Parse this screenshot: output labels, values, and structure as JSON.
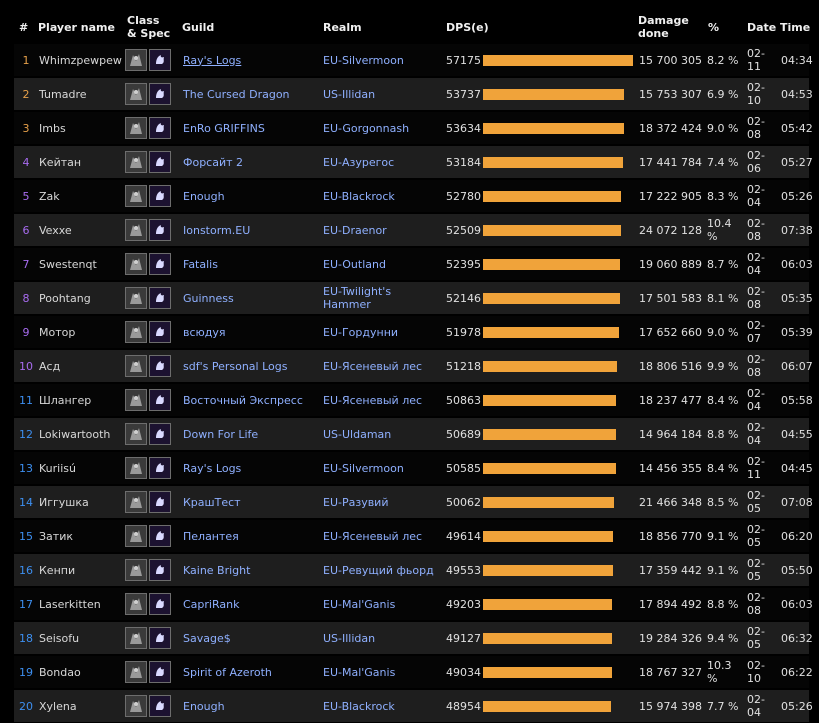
{
  "headers": {
    "rank": "#",
    "player": "Player name",
    "class_spec": "Class & Spec",
    "guild": "Guild",
    "realm": "Realm",
    "dps": "DPS(e)",
    "damage": "Damage done",
    "pct": "%",
    "date": "Date",
    "time": "Time"
  },
  "max_dps": 57175,
  "rows": [
    {
      "rank": "1",
      "name": "Whimzpewpew",
      "guild": "Ray's Logs",
      "guild_link": true,
      "realm": "EU-Silvermoon",
      "dps": "57175",
      "damage": "15 700 305",
      "pct": "8.2 %",
      "date": "02-11",
      "time": "04:34",
      "rank_color": "gold"
    },
    {
      "rank": "2",
      "name": "Tumadre",
      "guild": "The Cursed Dragon",
      "guild_link": false,
      "realm": "US-Illidan",
      "dps": "53737",
      "damage": "15 753 307",
      "pct": "6.9 %",
      "date": "02-10",
      "time": "04:53",
      "rank_color": "gold"
    },
    {
      "rank": "3",
      "name": "Imbs",
      "guild": "EnRo GRIFFINS",
      "guild_link": false,
      "realm": "EU-Gorgonnash",
      "dps": "53634",
      "damage": "18 372 424",
      "pct": "9.0 %",
      "date": "02-08",
      "time": "05:42",
      "rank_color": "gold"
    },
    {
      "rank": "4",
      "name": "Кейтан",
      "guild": "Форсайт 2",
      "guild_link": false,
      "realm": "EU-Азурегос",
      "dps": "53184",
      "damage": "17 441 784",
      "pct": "7.4 %",
      "date": "02-06",
      "time": "05:27",
      "rank_color": "purple"
    },
    {
      "rank": "5",
      "name": "Zak",
      "guild": "Enough",
      "guild_link": false,
      "realm": "EU-Blackrock",
      "dps": "52780",
      "damage": "17 222 905",
      "pct": "8.3 %",
      "date": "02-04",
      "time": "05:26",
      "rank_color": "purple"
    },
    {
      "rank": "6",
      "name": "Vexxe",
      "guild": "Ionstorm.EU",
      "guild_link": false,
      "realm": "EU-Draenor",
      "dps": "52509",
      "damage": "24 072 128",
      "pct": "10.4 %",
      "date": "02-08",
      "time": "07:38",
      "rank_color": "purple"
    },
    {
      "rank": "7",
      "name": "Swestenqt",
      "guild": "Fatalis",
      "guild_link": false,
      "realm": "EU-Outland",
      "dps": "52395",
      "damage": "19 060 889",
      "pct": "8.7 %",
      "date": "02-04",
      "time": "06:03",
      "rank_color": "purple"
    },
    {
      "rank": "8",
      "name": "Poohtang",
      "guild": "Guinness",
      "guild_link": false,
      "realm": "EU-Twilight's Hammer",
      "dps": "52146",
      "damage": "17 501 583",
      "pct": "8.1 %",
      "date": "02-08",
      "time": "05:35",
      "rank_color": "purple"
    },
    {
      "rank": "9",
      "name": "Мотор",
      "guild": "всюдуя",
      "guild_link": false,
      "realm": "EU-Гордунни",
      "dps": "51978",
      "damage": "17 652 660",
      "pct": "9.0 %",
      "date": "02-07",
      "time": "05:39",
      "rank_color": "purple"
    },
    {
      "rank": "10",
      "name": "Асд",
      "guild": "sdf's Personal Logs",
      "guild_link": false,
      "realm": "EU-Ясеневый лес",
      "dps": "51218",
      "damage": "18 806 516",
      "pct": "9.9 %",
      "date": "02-08",
      "time": "06:07",
      "rank_color": "purple"
    },
    {
      "rank": "11",
      "name": "Шлангер",
      "guild": "Восточный Экспресс",
      "guild_link": false,
      "realm": "EU-Ясеневый лес",
      "dps": "50863",
      "damage": "18 237 477",
      "pct": "8.4 %",
      "date": "02-04",
      "time": "05:58",
      "rank_color": "blue"
    },
    {
      "rank": "12",
      "name": "Lokiwartooth",
      "guild": "Down For Life",
      "guild_link": false,
      "realm": "US-Uldaman",
      "dps": "50689",
      "damage": "14 964 184",
      "pct": "8.8 %",
      "date": "02-04",
      "time": "04:55",
      "rank_color": "blue"
    },
    {
      "rank": "13",
      "name": "Kuriisú",
      "guild": "Ray's Logs",
      "guild_link": false,
      "realm": "EU-Silvermoon",
      "dps": "50585",
      "damage": "14 456 355",
      "pct": "8.4 %",
      "date": "02-11",
      "time": "04:45",
      "rank_color": "blue"
    },
    {
      "rank": "14",
      "name": "Иггушка",
      "guild": "КрашТест",
      "guild_link": false,
      "realm": "EU-Разувий",
      "dps": "50062",
      "damage": "21 466 348",
      "pct": "8.5 %",
      "date": "02-05",
      "time": "07:08",
      "rank_color": "blue"
    },
    {
      "rank": "15",
      "name": "Затик",
      "guild": "Пелантея",
      "guild_link": false,
      "realm": "EU-Ясеневый лес",
      "dps": "49614",
      "damage": "18 856 770",
      "pct": "9.1 %",
      "date": "02-05",
      "time": "06:20",
      "rank_color": "blue"
    },
    {
      "rank": "16",
      "name": "Кенпи",
      "guild": "Kaine Bright",
      "guild_link": false,
      "realm": "EU-Ревущий фьорд",
      "dps": "49553",
      "damage": "17 359 442",
      "pct": "9.1 %",
      "date": "02-05",
      "time": "05:50",
      "rank_color": "blue"
    },
    {
      "rank": "17",
      "name": "Laserkitten",
      "guild": "CapriRank",
      "guild_link": false,
      "realm": "EU-Mal'Ganis",
      "dps": "49203",
      "damage": "17 894 492",
      "pct": "8.8 %",
      "date": "02-08",
      "time": "06:03",
      "rank_color": "blue"
    },
    {
      "rank": "18",
      "name": "Seisofu",
      "guild": "Savage$",
      "guild_link": false,
      "realm": "US-Illidan",
      "dps": "49127",
      "damage": "19 284 326",
      "pct": "9.4 %",
      "date": "02-05",
      "time": "06:32",
      "rank_color": "blue"
    },
    {
      "rank": "19",
      "name": "Bondao",
      "guild": "Spirit of Azeroth",
      "guild_link": false,
      "realm": "EU-Mal'Ganis",
      "dps": "49034",
      "damage": "18 767 327",
      "pct": "10.3 %",
      "date": "02-10",
      "time": "06:22",
      "rank_color": "blue"
    },
    {
      "rank": "20",
      "name": "Xylena",
      "guild": "Enough",
      "guild_link": false,
      "realm": "EU-Blackrock",
      "dps": "48954",
      "damage": "15 974 398",
      "pct": "7.7 %",
      "date": "02-04",
      "time": "05:26",
      "rank_color": "blue"
    }
  ],
  "icons": {
    "class": "shaman-class-icon",
    "spec": "spec-icon"
  },
  "colors": {
    "bar": "#f0a33a",
    "gold": "#e6a04a",
    "purple": "#a86cf0",
    "blue": "#3d8ff0",
    "link": "#8fb0ff"
  }
}
